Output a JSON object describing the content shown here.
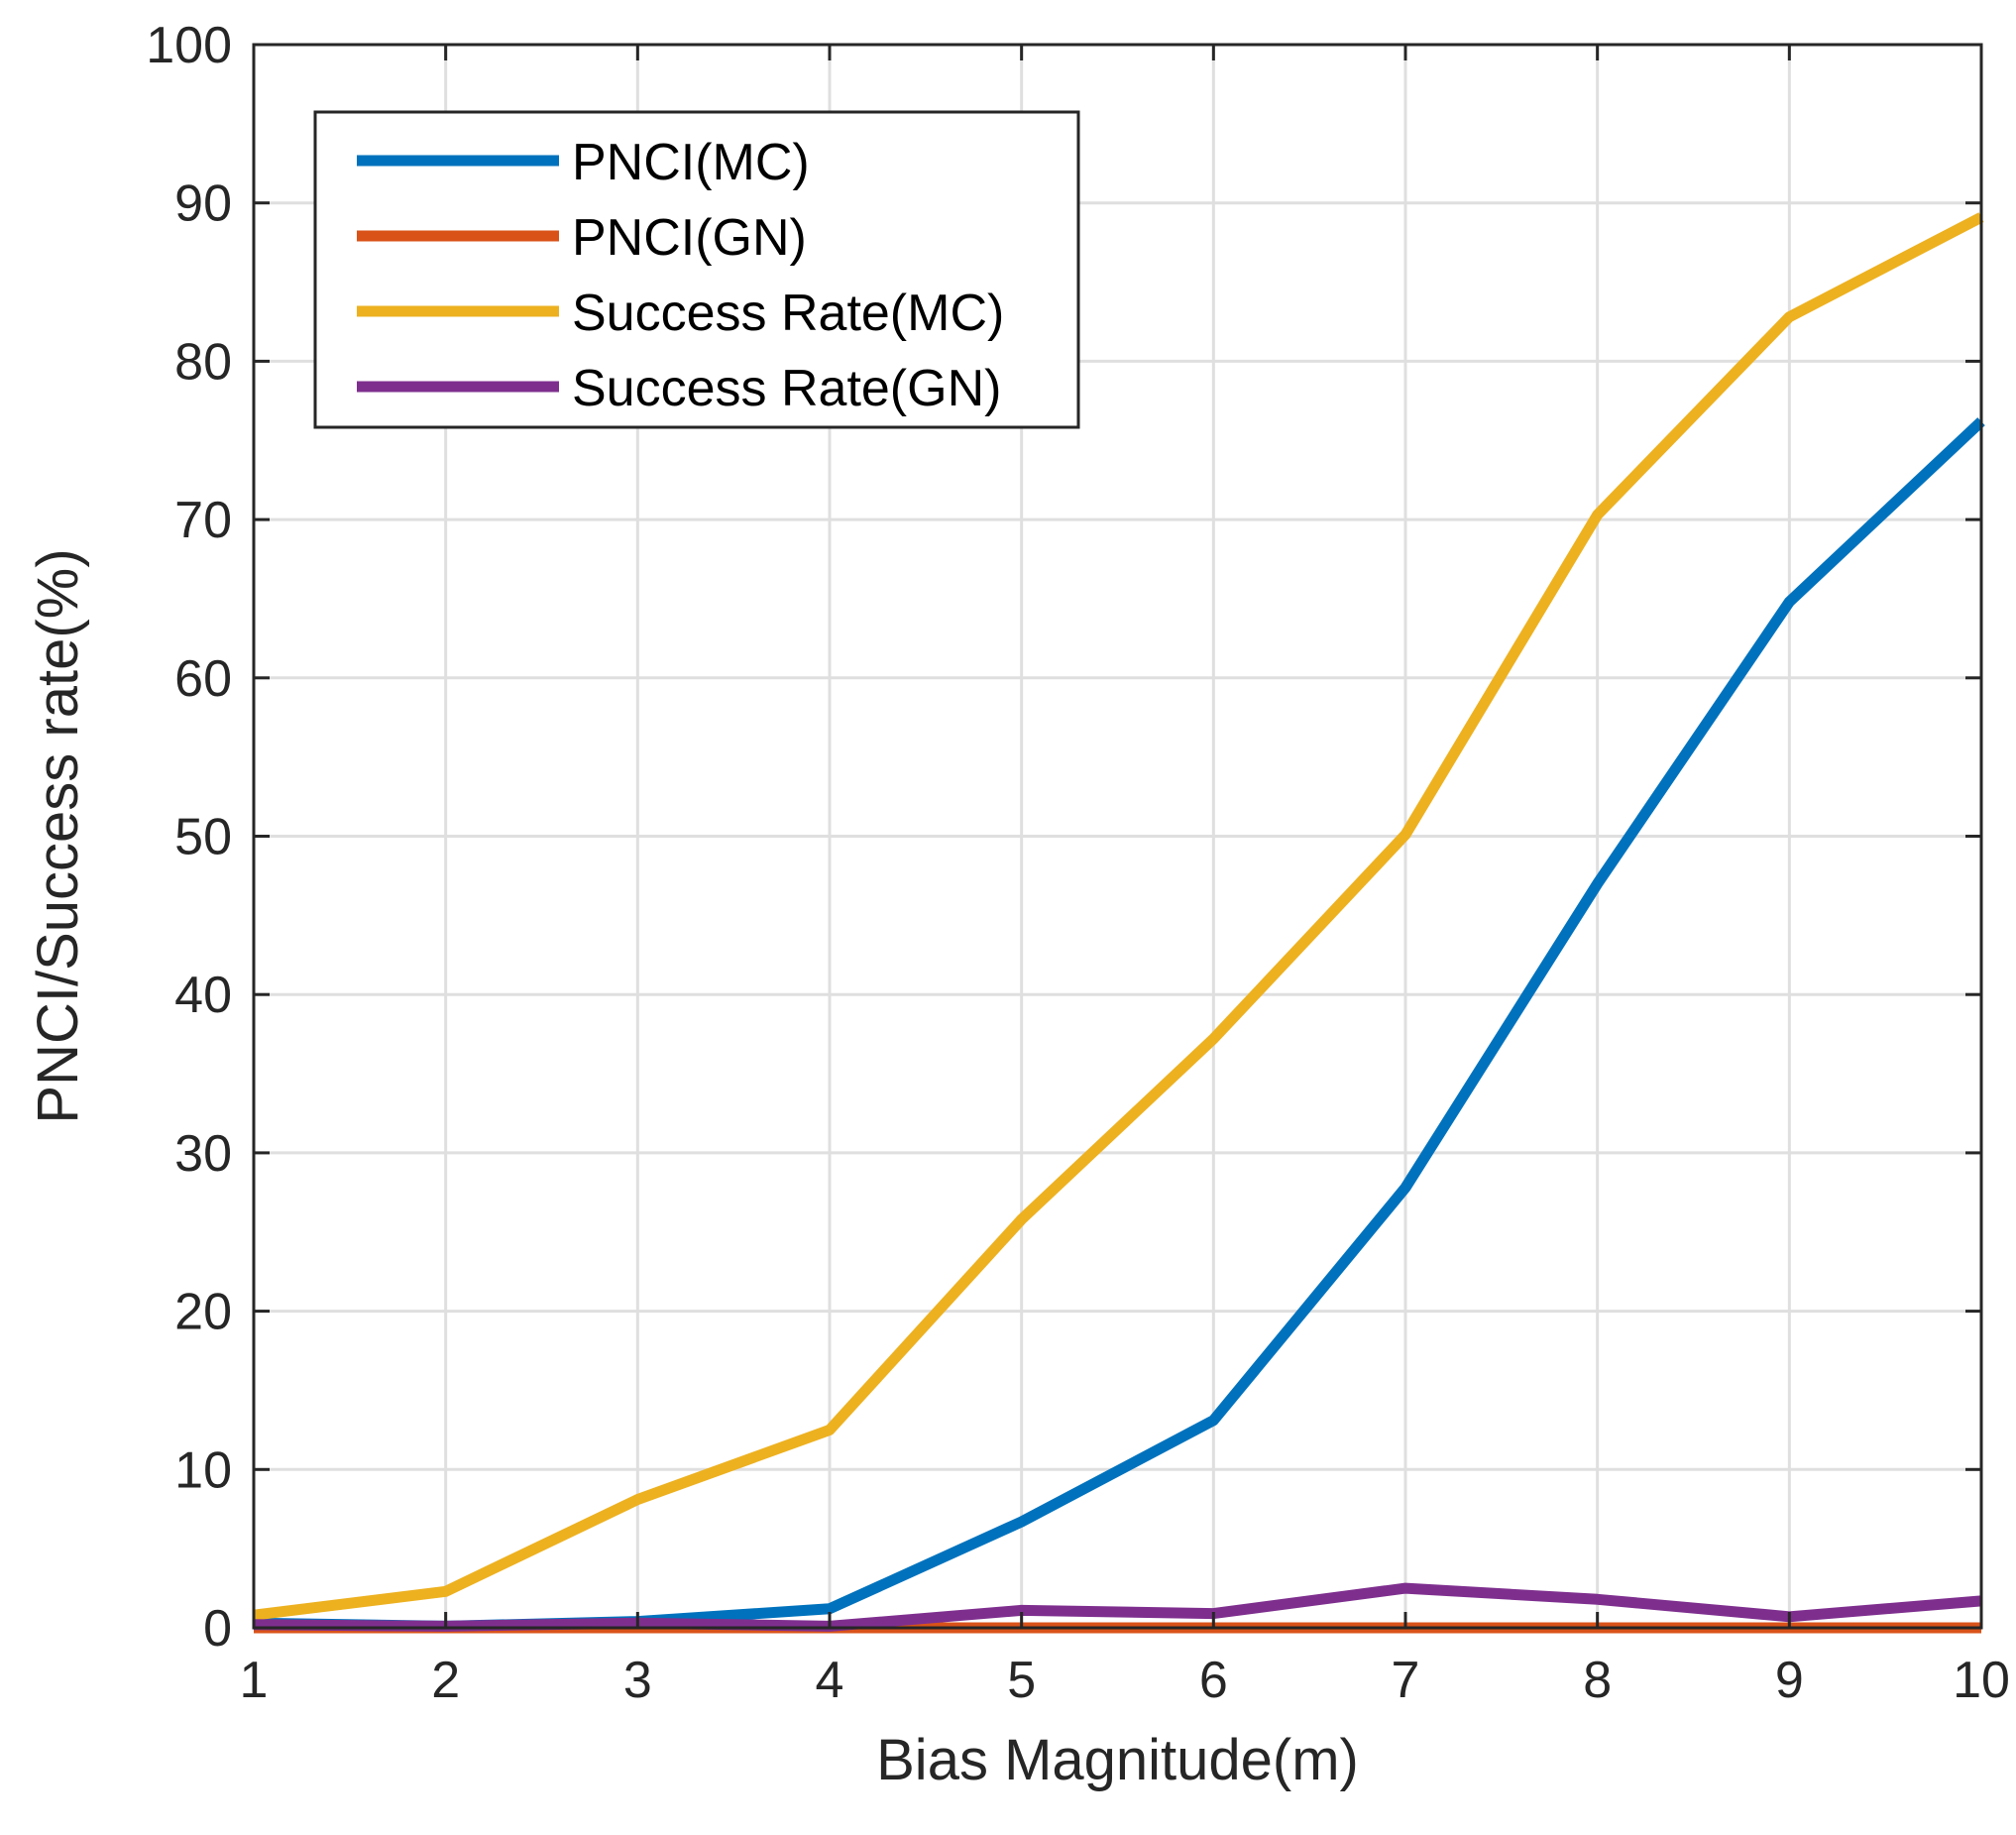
{
  "chart_data": {
    "type": "line",
    "title": "",
    "xlabel": "Bias Magnitude(m)",
    "ylabel": "PNCI/Success rate(%)",
    "xlim": [
      1,
      10
    ],
    "ylim": [
      0,
      100
    ],
    "xticks": [
      1,
      2,
      3,
      4,
      5,
      6,
      7,
      8,
      9,
      10
    ],
    "yticks": [
      0,
      10,
      20,
      30,
      40,
      50,
      60,
      70,
      80,
      90,
      100
    ],
    "grid": true,
    "legend_position": "top-left",
    "x": [
      1,
      2,
      3,
      4,
      5,
      6,
      7,
      8,
      9,
      10
    ],
    "series": [
      {
        "name": "PNCI(MC)",
        "color": "#0072BD",
        "values": [
          0.3,
          0.1,
          0.4,
          1.2,
          6.7,
          13.1,
          27.8,
          47.0,
          64.8,
          76.2
        ]
      },
      {
        "name": "PNCI(GN)",
        "color": "#D95319",
        "values": [
          0.0,
          0.0,
          0.0,
          0.0,
          0.0,
          0.0,
          0.0,
          0.0,
          0.0,
          0.0
        ]
      },
      {
        "name": "Success Rate(MC)",
        "color": "#EDB120",
        "values": [
          0.8,
          2.3,
          8.1,
          12.5,
          25.8,
          37.2,
          50.1,
          70.3,
          82.8,
          89.1
        ]
      },
      {
        "name": "Success Rate(GN)",
        "color": "#7E2F8E",
        "values": [
          0.2,
          0.1,
          0.3,
          0.1,
          1.1,
          0.9,
          2.5,
          1.8,
          0.7,
          1.7
        ]
      }
    ]
  }
}
